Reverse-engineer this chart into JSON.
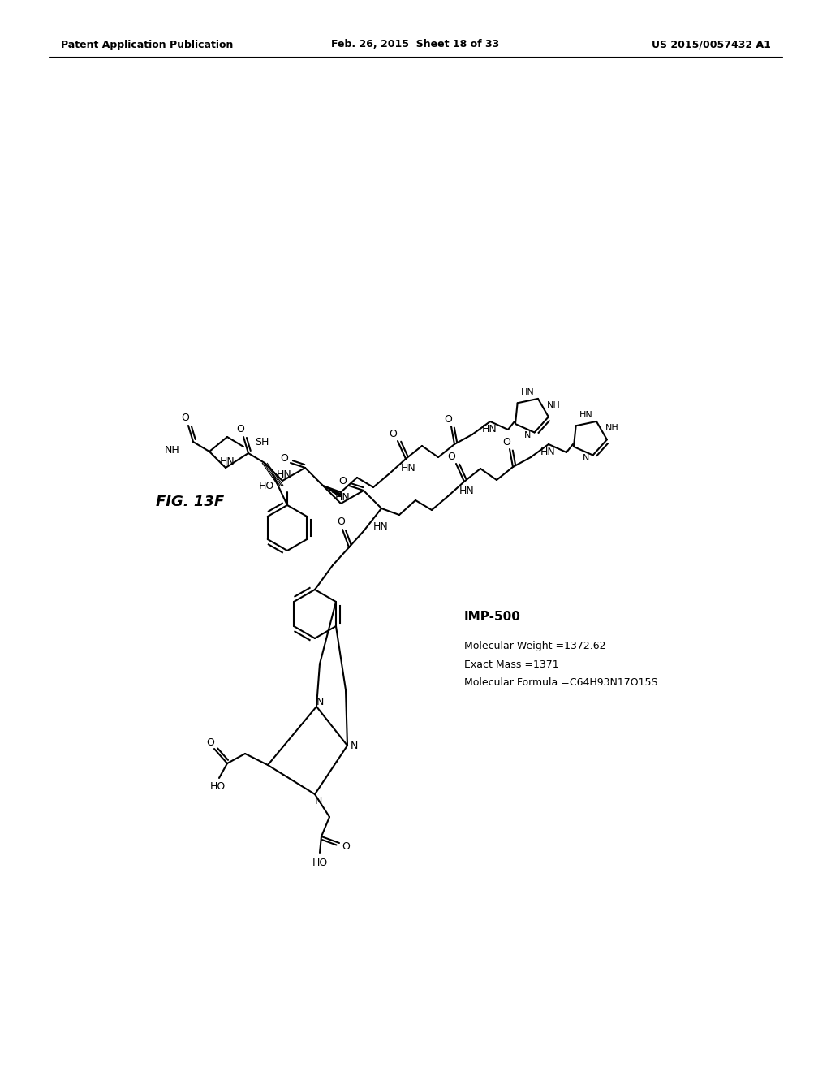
{
  "header_left": "Patent Application Publication",
  "header_center": "Feb. 26, 2015  Sheet 18 of 33",
  "header_right": "US 2015/0057432 A1",
  "figure_label": "FIG. 13F",
  "compound_name": "IMP-500",
  "mol_weight": "Molecular Weight =1372.62",
  "exact_mass": "Exact Mass =1371",
  "mol_formula": "Molecular Formula =C64H93N17O15S",
  "background": "#ffffff"
}
